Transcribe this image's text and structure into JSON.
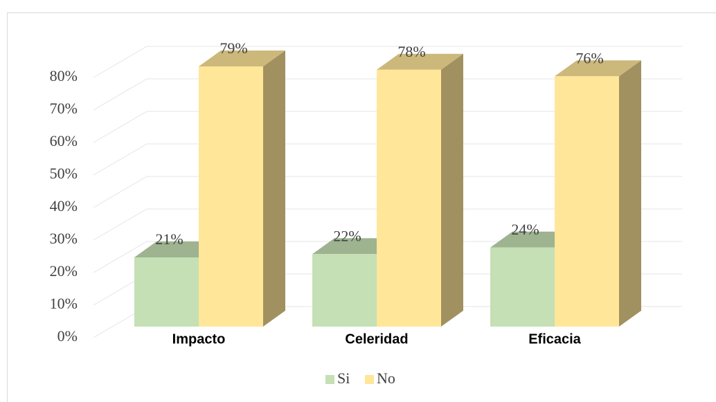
{
  "chart_data": {
    "type": "bar3d",
    "categories": [
      "Impacto",
      "Celeridad",
      "Eficacia"
    ],
    "series": [
      {
        "name": "Si",
        "color": "#c5e0b4",
        "values": [
          21,
          22,
          24
        ],
        "value_labels": [
          "21%",
          "22%",
          "24%"
        ]
      },
      {
        "name": "No",
        "color": "#ffe699",
        "values": [
          79,
          78,
          76
        ],
        "value_labels": [
          "79%",
          "78%",
          "76%"
        ]
      }
    ],
    "ylim": [
      0,
      80
    ],
    "yticks": [
      {
        "value": 0,
        "label": "0%"
      },
      {
        "value": 10,
        "label": "10%"
      },
      {
        "value": 20,
        "label": "20%"
      },
      {
        "value": 30,
        "label": "30%"
      },
      {
        "value": 40,
        "label": "40%"
      },
      {
        "value": 50,
        "label": "50%"
      },
      {
        "value": 60,
        "label": "60%"
      },
      {
        "value": 70,
        "label": "70%"
      },
      {
        "value": 80,
        "label": "80%"
      }
    ],
    "grid": true,
    "legend": "bottom"
  }
}
